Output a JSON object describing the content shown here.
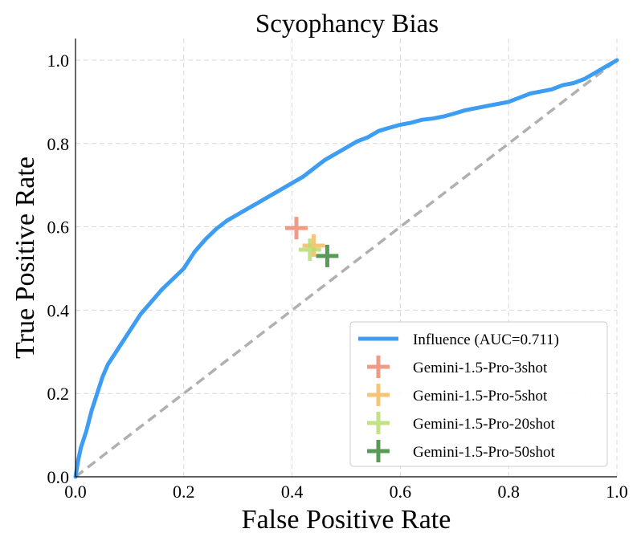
{
  "chart_data": {
    "type": "line",
    "title": "Scyophancy Bias",
    "xlabel": "False Positive Rate",
    "ylabel": "True Positive Rate",
    "xlim": [
      0.0,
      1.0
    ],
    "ylim": [
      0.0,
      1.0
    ],
    "x_ticks": [
      "0.0",
      "0.2",
      "0.4",
      "0.6",
      "0.8",
      "1.0"
    ],
    "y_ticks": [
      "0.0",
      "0.2",
      "0.4",
      "0.6",
      "0.8",
      "1.0"
    ],
    "grid": true,
    "legend_position": "bottom-right",
    "diagonal": {
      "x": [
        0.0,
        1.0
      ],
      "y": [
        0.0,
        1.0
      ],
      "color": "#b0b0b0",
      "style": "dashed"
    },
    "series": [
      {
        "name": "Influence (AUC=0.711)",
        "type": "line",
        "color": "#3d9df2",
        "x": [
          0.0,
          0.005,
          0.01,
          0.02,
          0.03,
          0.04,
          0.05,
          0.06,
          0.07,
          0.08,
          0.09,
          0.1,
          0.12,
          0.14,
          0.16,
          0.18,
          0.2,
          0.22,
          0.24,
          0.26,
          0.28,
          0.3,
          0.32,
          0.34,
          0.36,
          0.38,
          0.4,
          0.42,
          0.44,
          0.46,
          0.48,
          0.5,
          0.52,
          0.54,
          0.56,
          0.58,
          0.6,
          0.62,
          0.64,
          0.66,
          0.68,
          0.7,
          0.72,
          0.74,
          0.76,
          0.78,
          0.8,
          0.82,
          0.84,
          0.86,
          0.88,
          0.9,
          0.92,
          0.94,
          0.96,
          0.98,
          1.0
        ],
        "y": [
          0.0,
          0.04,
          0.07,
          0.11,
          0.16,
          0.2,
          0.24,
          0.27,
          0.29,
          0.31,
          0.33,
          0.35,
          0.39,
          0.42,
          0.45,
          0.475,
          0.5,
          0.54,
          0.57,
          0.595,
          0.615,
          0.63,
          0.645,
          0.66,
          0.675,
          0.69,
          0.705,
          0.72,
          0.74,
          0.76,
          0.775,
          0.79,
          0.805,
          0.815,
          0.83,
          0.838,
          0.845,
          0.85,
          0.857,
          0.86,
          0.865,
          0.872,
          0.88,
          0.885,
          0.89,
          0.895,
          0.9,
          0.91,
          0.92,
          0.925,
          0.93,
          0.94,
          0.945,
          0.955,
          0.97,
          0.985,
          1.0
        ]
      },
      {
        "name": "Gemini-1.5-Pro-3shot",
        "type": "marker",
        "color": "#ee8a73",
        "x": [
          0.408
        ],
        "y": [
          0.597
        ]
      },
      {
        "name": "Gemini-1.5-Pro-5shot",
        "type": "marker",
        "color": "#f6bb63",
        "x": [
          0.44
        ],
        "y": [
          0.555
        ]
      },
      {
        "name": "Gemini-1.5-Pro-20shot",
        "type": "marker",
        "color": "#b9dd72",
        "x": [
          0.433
        ],
        "y": [
          0.545
        ]
      },
      {
        "name": "Gemini-1.5-Pro-50shot",
        "type": "marker",
        "color": "#3a8a3a",
        "x": [
          0.465
        ],
        "y": [
          0.53
        ]
      }
    ]
  }
}
